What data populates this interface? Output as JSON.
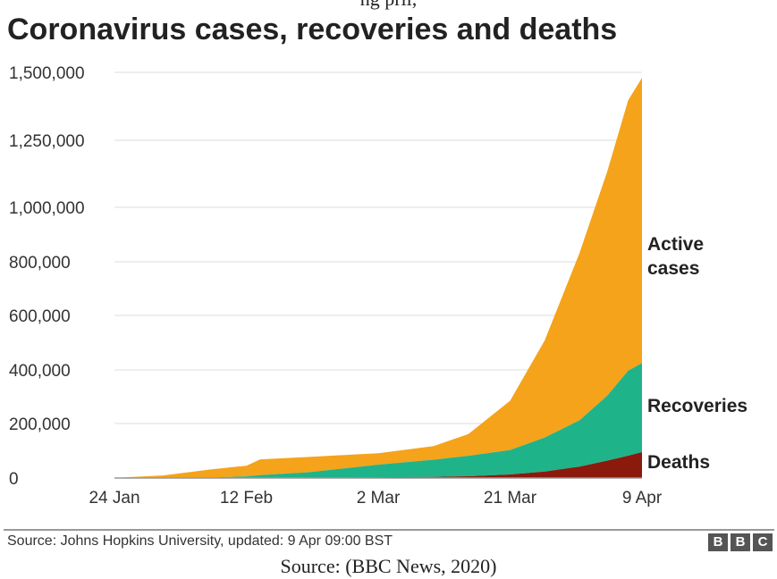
{
  "top_caption": "ng                                                                            pril,",
  "chart_data": {
    "type": "area",
    "title": "Coronavirus cases, recoveries and deaths",
    "x_tick_labels": [
      "24 Jan",
      "12 Feb",
      "2 Mar",
      "21 Mar",
      "9 Apr"
    ],
    "y_tick_labels": [
      "0",
      "200,000",
      "400,000",
      "600,000",
      "800,000",
      "1,000,000",
      "1,250,000",
      "1,500,000"
    ],
    "y_ticks": [
      0,
      200000,
      400000,
      600000,
      800000,
      1000000,
      1250000,
      1500000
    ],
    "x_dates": [
      "24 Jan",
      "31 Jan",
      "7 Feb",
      "12 Feb",
      "14 Feb",
      "21 Feb",
      "2 Mar",
      "10 Mar",
      "15 Mar",
      "21 Mar",
      "26 Mar",
      "31 Mar",
      "4 Apr",
      "7 Apr",
      "9 Apr"
    ],
    "stacked": true,
    "series": [
      {
        "name": "Deaths",
        "color": "#8b1a0c",
        "values": [
          0,
          200,
          600,
          1100,
          1500,
          2300,
          3100,
          4300,
          6500,
          13000,
          24000,
          42000,
          64000,
          82000,
          95000
        ]
      },
      {
        "name": "Recoveries",
        "color": "#1fb38a",
        "values": [
          0,
          200,
          1500,
          5000,
          9000,
          19000,
          46000,
          63000,
          75000,
          90000,
          125000,
          170000,
          240000,
          315000,
          330000
        ]
      },
      {
        "name": "Active cases",
        "color": "#f5a31a",
        "values": [
          600,
          9000,
          30000,
          39000,
          58000,
          56000,
          42000,
          50000,
          80000,
          182000,
          360000,
          620000,
          830000,
          1000000,
          1055000
        ]
      }
    ],
    "xlabel": "",
    "ylabel": "",
    "grid": true
  },
  "labels": {
    "active": [
      "Active",
      "cases"
    ],
    "recoveries": "Recoveries",
    "deaths": "Deaths"
  },
  "footer": {
    "source": "Source: Johns Hopkins University, updated: 9 Apr 09:00 BST",
    "logo": [
      "B",
      "B",
      "C"
    ]
  },
  "bottom_caption": "Source: (BBC News, 2020)"
}
